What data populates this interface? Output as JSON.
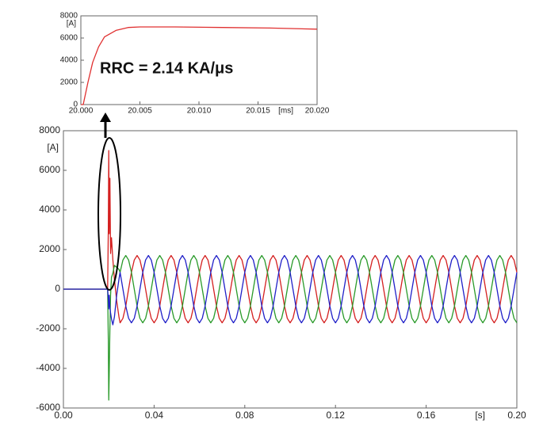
{
  "chart_data": [
    {
      "type": "line",
      "annotation": "RRC = 2.14 KA/μs",
      "x_label": "[ms]",
      "y_label": "[A]",
      "x": [
        20.0,
        20.0002,
        20.0006,
        20.001,
        20.0015,
        20.002,
        20.003,
        20.004,
        20.005,
        20.008,
        20.012,
        20.016,
        20.02
      ],
      "series": [
        {
          "color": "#e03030",
          "values": [
            0,
            0,
            2000,
            3800,
            5200,
            6100,
            6700,
            6950,
            7000,
            7000,
            6950,
            6900,
            6800
          ]
        }
      ],
      "xlim": [
        20.0,
        20.02
      ],
      "xticks": [
        {
          "value": 20.0,
          "label": "20.000"
        },
        20.005,
        {
          "value": 20.01,
          "label": "20.010"
        },
        20.015,
        {
          "value": 20.02,
          "label": "20.020"
        }
      ],
      "ylim": [
        0,
        8000
      ],
      "yticks": [
        0,
        2000,
        4000,
        6000,
        8000
      ],
      "grid": false
    },
    {
      "type": "line",
      "x_label": "[s]",
      "y_label": "[A]",
      "x": [
        0,
        0.0195,
        0.0198,
        0.02,
        0.0202,
        0.0205,
        0.0208,
        0.0212,
        0.0218,
        0.0225,
        0.0235,
        0.0245,
        0.025,
        0.02625,
        0.0275,
        0.02875,
        0.03,
        0.03125,
        0.0325,
        0.03375,
        0.035,
        0.03625,
        0.0375,
        0.03875,
        0.04,
        0.04125,
        0.0425,
        0.04375,
        0.045,
        0.04625,
        0.0475,
        0.04875,
        0.05,
        0.05125,
        0.0525,
        0.05375,
        0.055,
        0.05625,
        0.0575,
        0.05875,
        0.06,
        0.06125,
        0.0625,
        0.06375,
        0.065,
        0.06625,
        0.0675,
        0.06875,
        0.07,
        0.07125,
        0.0725,
        0.07375,
        0.075,
        0.07625,
        0.0775,
        0.07875,
        0.08,
        0.08125,
        0.0825,
        0.08375,
        0.085,
        0.08625,
        0.0875,
        0.08875,
        0.09,
        0.09125,
        0.0925,
        0.09375,
        0.095,
        0.09625,
        0.0975,
        0.09875,
        0.1,
        0.10125,
        0.1025,
        0.10375,
        0.105,
        0.10625,
        0.1075,
        0.10875,
        0.11,
        0.11125,
        0.1125,
        0.11375,
        0.115,
        0.11625,
        0.1175,
        0.11875,
        0.12,
        0.12125,
        0.1225,
        0.12375,
        0.125,
        0.12625,
        0.1275,
        0.12875,
        0.13,
        0.13125,
        0.1325,
        0.13375,
        0.135,
        0.13625,
        0.1375,
        0.13875,
        0.14,
        0.14125,
        0.1425,
        0.14375,
        0.145,
        0.14625,
        0.1475,
        0.14875,
        0.15,
        0.15125,
        0.1525,
        0.15375,
        0.155,
        0.15625,
        0.1575,
        0.15875,
        0.16,
        0.16125,
        0.1625,
        0.16375,
        0.165,
        0.16625,
        0.1675,
        0.16875,
        0.17,
        0.17125,
        0.1725,
        0.17375,
        0.175,
        0.17625,
        0.1775,
        0.17875,
        0.18,
        0.18125,
        0.1825,
        0.18375,
        0.185,
        0.18625,
        0.1875,
        0.18875,
        0.19,
        0.19125,
        0.1925,
        0.19375,
        0.195,
        0.19625,
        0.1975,
        0.19875,
        0.2
      ],
      "series": [
        {
          "color": "#d42020",
          "values": [
            0,
            0,
            3000,
            7000,
            2800,
            5600,
            1800,
            2600,
            1500,
            500,
            -600,
            -1400,
            -1700,
            -1472,
            -850,
            0,
            850,
            1472,
            1700,
            1472,
            850,
            0,
            -850,
            -1472,
            -1700,
            -1472,
            -850,
            0,
            850,
            1472,
            1700,
            1472,
            850,
            0,
            -850,
            -1472,
            -1700,
            -1472,
            -850,
            0,
            850,
            1472,
            1700,
            1472,
            850,
            0,
            -850,
            -1472,
            -1700,
            -1472,
            -850,
            0,
            850,
            1472,
            1700,
            1472,
            850,
            0,
            -850,
            -1472,
            -1700,
            -1472,
            -850,
            0,
            850,
            1472,
            1700,
            1472,
            850,
            0,
            -850,
            -1472,
            -1700,
            -1472,
            -850,
            0,
            850,
            1472,
            1700,
            1472,
            850,
            0,
            -850,
            -1472,
            -1700,
            -1472,
            -850,
            0,
            850,
            1472,
            1700,
            1472,
            850,
            0,
            -850,
            -1472,
            -1700,
            -1472,
            -850,
            0,
            850,
            1472,
            1700,
            1472,
            850,
            0,
            -850,
            -1472,
            -1700,
            -1472,
            -850,
            0,
            850,
            1472,
            1700,
            1472,
            850,
            0,
            -850,
            -1472,
            -1700,
            -1472,
            -850,
            0,
            850,
            1472,
            1700,
            1472,
            850,
            0,
            -850,
            -1472,
            -1700,
            -1472,
            -850,
            0,
            850,
            1472,
            1700,
            1472,
            850,
            0,
            -850,
            -1472,
            -1700,
            -1472,
            -850,
            0,
            850,
            1472,
            1700,
            1472,
            850
          ]
        },
        {
          "color": "#2a9a2a",
          "values": [
            0,
            0,
            -2500,
            -5600,
            -4300,
            -2000,
            -300,
            600,
            800,
            1200,
            1100,
            1000,
            850,
            1472,
            1700,
            1472,
            850,
            0,
            -850,
            -1472,
            -1700,
            -1472,
            -850,
            0,
            850,
            1472,
            1700,
            1472,
            850,
            0,
            -850,
            -1472,
            -1700,
            -1472,
            -850,
            0,
            850,
            1472,
            1700,
            1472,
            850,
            0,
            -850,
            -1472,
            -1700,
            -1472,
            -850,
            0,
            850,
            1472,
            1700,
            1472,
            850,
            0,
            -850,
            -1472,
            -1700,
            -1472,
            -850,
            0,
            850,
            1472,
            1700,
            1472,
            850,
            0,
            -850,
            -1472,
            -1700,
            -1472,
            -850,
            0,
            850,
            1472,
            1700,
            1472,
            850,
            0,
            -850,
            -1472,
            -1700,
            -1472,
            -850,
            0,
            850,
            1472,
            1700,
            1472,
            850,
            0,
            -850,
            -1472,
            -1700,
            -1472,
            -850,
            0,
            850,
            1472,
            1700,
            1472,
            850,
            0,
            -850,
            -1472,
            -1700,
            -1472,
            -850,
            0,
            850,
            1472,
            1700,
            1472,
            850,
            0,
            -850,
            -1472,
            -1700,
            -1472,
            -850,
            0,
            850,
            1472,
            1700,
            1472,
            850,
            0,
            -850,
            -1472,
            -1700,
            -1472,
            -850,
            0,
            850,
            1472,
            1700,
            1472,
            850,
            0,
            -850,
            -1472,
            -1700,
            -1472,
            -850,
            0,
            850,
            1472,
            1700,
            1472,
            850,
            0,
            -850,
            -1472,
            -1700
          ]
        },
        {
          "color": "#2020c8",
          "values": [
            0,
            0,
            -500,
            -1000,
            -300,
            -900,
            -1200,
            -1500,
            -1800,
            -1400,
            -300,
            500,
            850,
            0,
            -850,
            -1472,
            -1700,
            -1472,
            -850,
            0,
            850,
            1472,
            1700,
            1472,
            850,
            0,
            -850,
            -1472,
            -1700,
            -1472,
            -850,
            0,
            850,
            1472,
            1700,
            1472,
            850,
            0,
            -850,
            -1472,
            -1700,
            -1472,
            -850,
            0,
            850,
            1472,
            1700,
            1472,
            850,
            0,
            -850,
            -1472,
            -1700,
            -1472,
            -850,
            0,
            850,
            1472,
            1700,
            1472,
            850,
            0,
            -850,
            -1472,
            -1700,
            -1472,
            -850,
            0,
            850,
            1472,
            1700,
            1472,
            850,
            0,
            -850,
            -1472,
            -1700,
            -1472,
            -850,
            0,
            850,
            1472,
            1700,
            1472,
            850,
            0,
            -850,
            -1472,
            -1700,
            -1472,
            -850,
            0,
            850,
            1472,
            1700,
            1472,
            850,
            0,
            -850,
            -1472,
            -1700,
            -1472,
            -850,
            0,
            850,
            1472,
            1700,
            1472,
            850,
            0,
            -850,
            -1472,
            -1700,
            -1472,
            -850,
            0,
            850,
            1472,
            1700,
            1472,
            850,
            0,
            -850,
            -1472,
            -1700,
            -1472,
            -850,
            0,
            850,
            1472,
            1700,
            1472,
            850,
            0,
            -850,
            -1472,
            -1700,
            -1472,
            -850,
            0,
            850,
            1472,
            1700,
            1472,
            850,
            0,
            -850,
            -1472,
            -1700,
            -1472,
            -850,
            0,
            850
          ]
        }
      ],
      "xlim": [
        0,
        0.2
      ],
      "xticks": [
        {
          "value": 0,
          "label": "0.00"
        },
        0.04,
        0.08,
        0.12,
        0.16,
        {
          "value": 0.2,
          "label": "0.20"
        }
      ],
      "ylim": [
        -6000,
        8000
      ],
      "yticks": [
        -6000,
        -4000,
        -2000,
        0,
        2000,
        4000,
        6000,
        8000
      ],
      "grid": false
    }
  ]
}
